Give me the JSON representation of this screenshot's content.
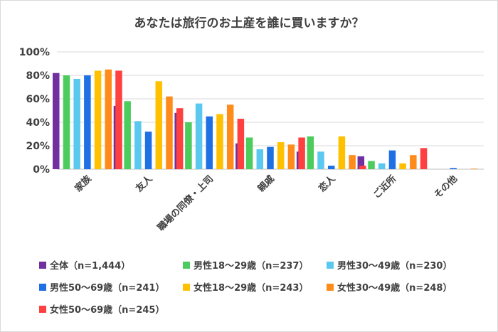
{
  "chart_data": {
    "type": "bar",
    "title": "あなたは旅行のお土産を誰に買いますか？",
    "xlabel": "",
    "ylabel": "",
    "ylim": [
      0,
      100
    ],
    "yticks": [
      "0%",
      "20%",
      "40%",
      "60%",
      "80%",
      "100%"
    ],
    "ytick_values": [
      0,
      20,
      40,
      60,
      80,
      100
    ],
    "grid": true,
    "legend_position": "bottom",
    "categories": [
      "家族",
      "友人",
      "職場の同僚・上司",
      "親戚",
      "恋人",
      "ご近所",
      "その他"
    ],
    "series": [
      {
        "name": "全体（n=1,444）",
        "color": "#7030a0",
        "values": [
          82,
          54,
          48,
          22,
          15,
          11,
          0
        ]
      },
      {
        "name": "男性18～29歳（n=237）",
        "color": "#4ccc5c",
        "values": [
          80,
          58,
          40,
          27,
          28,
          7,
          0
        ]
      },
      {
        "name": "男性30～49歳（n=230）",
        "color": "#5bc8f0",
        "values": [
          77,
          41,
          56,
          17,
          15,
          5,
          0
        ]
      },
      {
        "name": "男性50～69歳（n=241）",
        "color": "#1f6fe5",
        "values": [
          80,
          32,
          45,
          19,
          3,
          16,
          1
        ]
      },
      {
        "name": "女性18～29歳（n=243）",
        "color": "#ffc000",
        "values": [
          84,
          75,
          47,
          23,
          28,
          5,
          0
        ]
      },
      {
        "name": "女性30～49歳（n=248）",
        "color": "#ff8c1a",
        "values": [
          85,
          62,
          55,
          21,
          12,
          12,
          0.5
        ]
      },
      {
        "name": "女性50～69歳（n=245）",
        "color": "#ff4040",
        "values": [
          84,
          52,
          43,
          27,
          3,
          18,
          0
        ]
      }
    ]
  }
}
